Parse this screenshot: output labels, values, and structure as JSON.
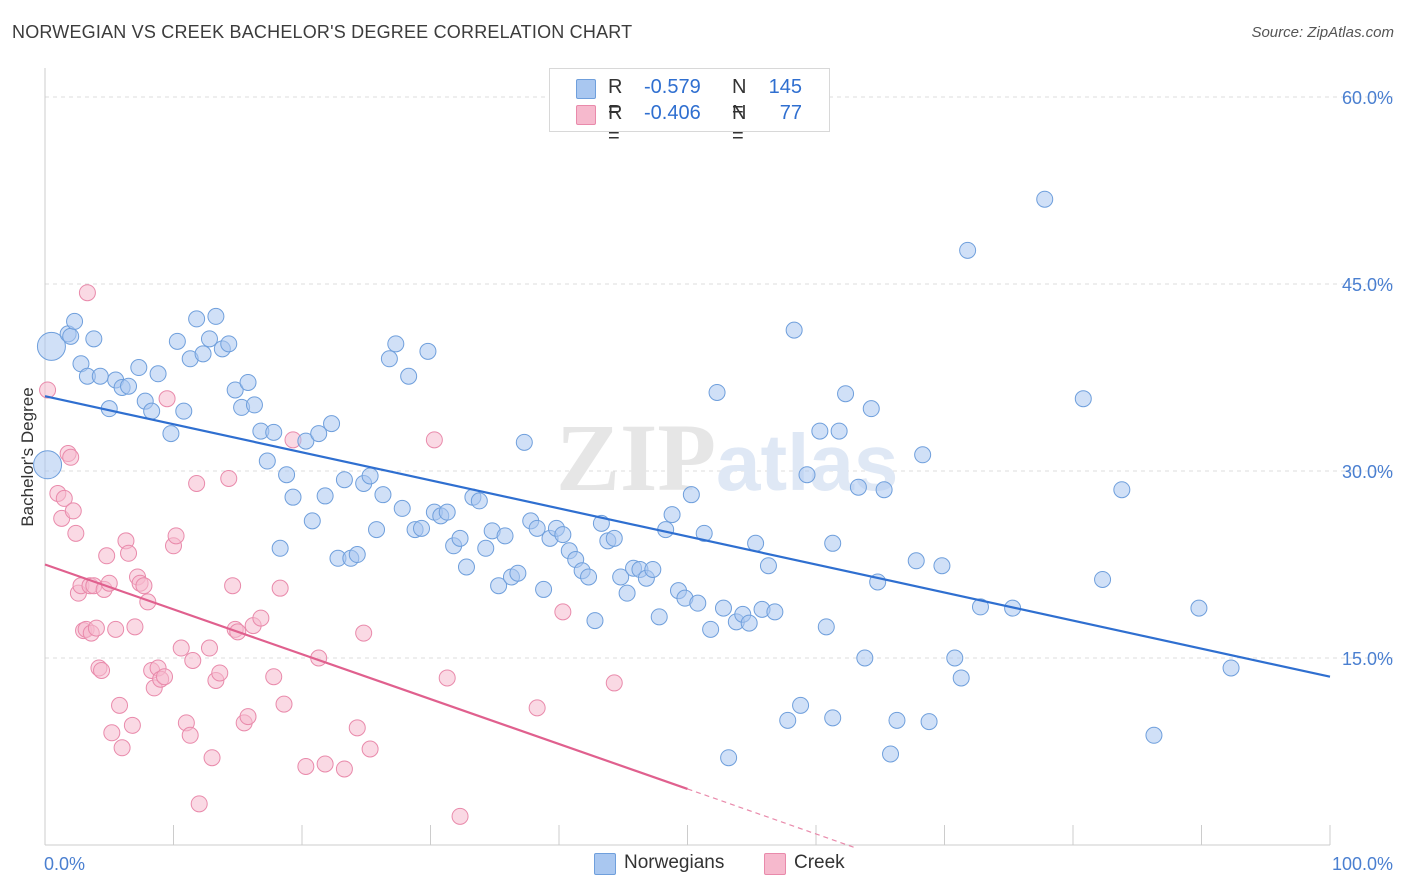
{
  "title": "NORWEGIAN VS CREEK BACHELOR'S DEGREE CORRELATION CHART",
  "source": "Source: ZipAtlas.com",
  "watermark": "ZIPatlas",
  "legend": {
    "rows": [
      {
        "r_label": "R =",
        "r_value": "-0.579",
        "n_label": "N =",
        "n_value": "145"
      },
      {
        "r_label": "R =",
        "r_value": "-0.406",
        "n_label": "N =",
        "n_value": "77"
      }
    ]
  },
  "bottom_legend": [
    "Norwegians",
    "Creek"
  ],
  "colors": {
    "blue_fill": "#a9c7f0",
    "blue_stroke": "#6f9fdc",
    "blue_line": "#2f6fd0",
    "pink_fill": "#f6b9cd",
    "pink_stroke": "#e98aab",
    "pink_line": "#e0608e",
    "axis_text": "#4a7fd0",
    "grid": "#dcdcdc"
  },
  "chart_data": {
    "type": "scatter",
    "title": "NORWEGIAN VS CREEK BACHELOR'S DEGREE CORRELATION CHART",
    "xlabel": "",
    "ylabel": "Bachelor's Degree",
    "xlim": [
      0,
      100
    ],
    "ylim": [
      0,
      60
    ],
    "x_tick_labels": [
      "0.0%",
      "100.0%"
    ],
    "y_ticks": [
      15,
      30,
      45,
      60
    ],
    "y_tick_labels": [
      "15.0%",
      "30.0%",
      "45.0%",
      "60.0%"
    ],
    "series": [
      {
        "name": "Norwegians",
        "r": -0.579,
        "n": 145,
        "trend": {
          "x": [
            0,
            100
          ],
          "y": [
            36.0,
            13.5
          ]
        },
        "points": [
          [
            0.5,
            40.0
          ],
          [
            0.2,
            30.5
          ],
          [
            1.8,
            41.0
          ],
          [
            2.0,
            40.8
          ],
          [
            2.3,
            42.0
          ],
          [
            2.8,
            38.6
          ],
          [
            3.3,
            37.6
          ],
          [
            3.8,
            40.6
          ],
          [
            4.3,
            37.6
          ],
          [
            5.0,
            35.0
          ],
          [
            5.5,
            37.3
          ],
          [
            6.0,
            36.7
          ],
          [
            6.5,
            36.8
          ],
          [
            7.3,
            38.3
          ],
          [
            7.8,
            35.6
          ],
          [
            8.3,
            34.8
          ],
          [
            8.8,
            37.8
          ],
          [
            9.8,
            33.0
          ],
          [
            10.3,
            40.4
          ],
          [
            10.8,
            34.8
          ],
          [
            11.3,
            39.0
          ],
          [
            11.8,
            42.2
          ],
          [
            12.3,
            39.4
          ],
          [
            12.8,
            40.6
          ],
          [
            13.3,
            42.4
          ],
          [
            13.8,
            39.8
          ],
          [
            14.3,
            40.2
          ],
          [
            14.8,
            36.5
          ],
          [
            15.3,
            35.1
          ],
          [
            15.8,
            37.1
          ],
          [
            16.3,
            35.3
          ],
          [
            16.8,
            33.2
          ],
          [
            17.3,
            30.8
          ],
          [
            17.8,
            33.1
          ],
          [
            18.3,
            23.8
          ],
          [
            18.8,
            29.7
          ],
          [
            19.3,
            27.9
          ],
          [
            20.3,
            32.4
          ],
          [
            20.8,
            26.0
          ],
          [
            21.3,
            33.0
          ],
          [
            21.8,
            28.0
          ],
          [
            22.3,
            33.8
          ],
          [
            22.8,
            23.0
          ],
          [
            23.3,
            29.3
          ],
          [
            23.8,
            23.0
          ],
          [
            24.3,
            23.3
          ],
          [
            24.8,
            29.0
          ],
          [
            25.3,
            29.6
          ],
          [
            25.8,
            25.3
          ],
          [
            26.3,
            28.1
          ],
          [
            26.8,
            39.0
          ],
          [
            27.3,
            40.2
          ],
          [
            27.8,
            27.0
          ],
          [
            28.3,
            37.6
          ],
          [
            28.8,
            25.3
          ],
          [
            29.3,
            25.4
          ],
          [
            29.8,
            39.6
          ],
          [
            30.3,
            26.7
          ],
          [
            30.8,
            26.4
          ],
          [
            31.3,
            26.7
          ],
          [
            31.8,
            24.0
          ],
          [
            32.3,
            24.6
          ],
          [
            32.8,
            22.3
          ],
          [
            33.3,
            27.9
          ],
          [
            33.8,
            27.6
          ],
          [
            34.3,
            23.8
          ],
          [
            34.8,
            25.2
          ],
          [
            35.3,
            20.8
          ],
          [
            35.8,
            24.8
          ],
          [
            36.3,
            21.5
          ],
          [
            36.8,
            21.8
          ],
          [
            37.3,
            32.3
          ],
          [
            37.8,
            26.0
          ],
          [
            38.3,
            25.4
          ],
          [
            38.8,
            20.5
          ],
          [
            39.3,
            24.6
          ],
          [
            39.8,
            25.4
          ],
          [
            40.3,
            24.9
          ],
          [
            40.8,
            23.6
          ],
          [
            41.3,
            22.9
          ],
          [
            41.8,
            22.0
          ],
          [
            42.3,
            21.5
          ],
          [
            42.8,
            18.0
          ],
          [
            43.3,
            25.8
          ],
          [
            43.8,
            24.4
          ],
          [
            44.3,
            24.6
          ],
          [
            44.8,
            21.5
          ],
          [
            45.3,
            20.2
          ],
          [
            45.8,
            22.2
          ],
          [
            46.3,
            22.1
          ],
          [
            46.8,
            21.4
          ],
          [
            47.3,
            22.1
          ],
          [
            47.8,
            18.3
          ],
          [
            48.3,
            25.3
          ],
          [
            48.8,
            26.5
          ],
          [
            49.3,
            20.4
          ],
          [
            49.8,
            19.8
          ],
          [
            50.3,
            28.1
          ],
          [
            50.8,
            19.4
          ],
          [
            51.3,
            25.0
          ],
          [
            51.8,
            17.3
          ],
          [
            52.3,
            36.3
          ],
          [
            52.8,
            19.0
          ],
          [
            53.8,
            17.9
          ],
          [
            54.3,
            18.5
          ],
          [
            54.8,
            17.8
          ],
          [
            55.3,
            24.2
          ],
          [
            55.8,
            18.9
          ],
          [
            56.3,
            22.4
          ],
          [
            56.8,
            18.7
          ],
          [
            57.8,
            10.0
          ],
          [
            58.3,
            41.3
          ],
          [
            58.8,
            11.2
          ],
          [
            59.3,
            29.7
          ],
          [
            60.3,
            33.2
          ],
          [
            60.8,
            17.5
          ],
          [
            61.3,
            24.2
          ],
          [
            61.8,
            33.2
          ],
          [
            62.3,
            36.2
          ],
          [
            63.3,
            28.7
          ],
          [
            63.8,
            15.0
          ],
          [
            64.3,
            35.0
          ],
          [
            64.8,
            21.1
          ],
          [
            65.3,
            28.5
          ],
          [
            65.8,
            7.3
          ],
          [
            66.3,
            10.0
          ],
          [
            67.8,
            22.8
          ],
          [
            68.3,
            31.3
          ],
          [
            68.8,
            9.9
          ],
          [
            69.8,
            22.4
          ],
          [
            70.8,
            15.0
          ],
          [
            71.3,
            13.4
          ],
          [
            71.8,
            47.7
          ],
          [
            72.8,
            19.1
          ],
          [
            75.3,
            19.0
          ],
          [
            77.8,
            51.8
          ],
          [
            80.8,
            35.8
          ],
          [
            82.3,
            21.3
          ],
          [
            83.8,
            28.5
          ],
          [
            86.3,
            8.8
          ],
          [
            89.8,
            19.0
          ],
          [
            92.3,
            14.2
          ],
          [
            53.2,
            7.0
          ],
          [
            61.3,
            10.2
          ]
        ]
      },
      {
        "name": "Creek",
        "r": -0.406,
        "n": 77,
        "trend": {
          "x": [
            0,
            50
          ],
          "y": [
            22.5,
            4.5
          ]
        },
        "trend_dashed": {
          "x": [
            50,
            63
          ],
          "y": [
            4.5,
            -0.2
          ]
        },
        "points": [
          [
            0.2,
            36.5
          ],
          [
            1.0,
            28.2
          ],
          [
            1.3,
            26.2
          ],
          [
            1.5,
            27.8
          ],
          [
            1.8,
            31.4
          ],
          [
            2.0,
            31.1
          ],
          [
            2.2,
            26.8
          ],
          [
            2.4,
            25.0
          ],
          [
            2.6,
            20.2
          ],
          [
            2.8,
            20.8
          ],
          [
            3.0,
            17.2
          ],
          [
            3.2,
            17.3
          ],
          [
            3.3,
            44.3
          ],
          [
            3.5,
            20.8
          ],
          [
            3.6,
            17.0
          ],
          [
            3.8,
            20.8
          ],
          [
            4.0,
            17.4
          ],
          [
            4.2,
            14.2
          ],
          [
            4.4,
            14.0
          ],
          [
            4.6,
            20.5
          ],
          [
            4.8,
            23.2
          ],
          [
            5.0,
            21.0
          ],
          [
            5.2,
            9.0
          ],
          [
            5.5,
            17.3
          ],
          [
            5.8,
            11.2
          ],
          [
            6.0,
            7.8
          ],
          [
            6.3,
            24.4
          ],
          [
            6.5,
            23.4
          ],
          [
            6.8,
            9.6
          ],
          [
            7.0,
            17.5
          ],
          [
            7.2,
            21.5
          ],
          [
            7.4,
            21.0
          ],
          [
            7.7,
            20.8
          ],
          [
            8.0,
            19.5
          ],
          [
            8.3,
            14.0
          ],
          [
            8.5,
            12.6
          ],
          [
            8.8,
            14.2
          ],
          [
            9.0,
            13.3
          ],
          [
            9.3,
            13.5
          ],
          [
            9.5,
            35.8
          ],
          [
            10.0,
            24.0
          ],
          [
            10.2,
            24.8
          ],
          [
            10.6,
            15.8
          ],
          [
            11.0,
            9.8
          ],
          [
            11.3,
            8.8
          ],
          [
            11.5,
            14.8
          ],
          [
            11.8,
            29.0
          ],
          [
            12.0,
            3.3
          ],
          [
            12.8,
            15.8
          ],
          [
            13.0,
            7.0
          ],
          [
            13.3,
            13.2
          ],
          [
            13.6,
            13.8
          ],
          [
            14.3,
            29.4
          ],
          [
            14.6,
            20.8
          ],
          [
            14.8,
            17.3
          ],
          [
            15.0,
            17.1
          ],
          [
            15.5,
            9.8
          ],
          [
            15.8,
            10.3
          ],
          [
            16.2,
            17.6
          ],
          [
            16.8,
            18.2
          ],
          [
            17.8,
            13.5
          ],
          [
            18.3,
            20.6
          ],
          [
            18.6,
            11.3
          ],
          [
            19.3,
            32.5
          ],
          [
            20.3,
            6.3
          ],
          [
            21.3,
            15.0
          ],
          [
            21.8,
            6.5
          ],
          [
            23.3,
            6.1
          ],
          [
            24.3,
            9.4
          ],
          [
            24.8,
            17.0
          ],
          [
            25.3,
            7.7
          ],
          [
            30.3,
            32.5
          ],
          [
            31.3,
            13.4
          ],
          [
            32.3,
            2.3
          ],
          [
            38.3,
            11.0
          ],
          [
            40.3,
            18.7
          ],
          [
            44.3,
            13.0
          ]
        ]
      }
    ]
  }
}
